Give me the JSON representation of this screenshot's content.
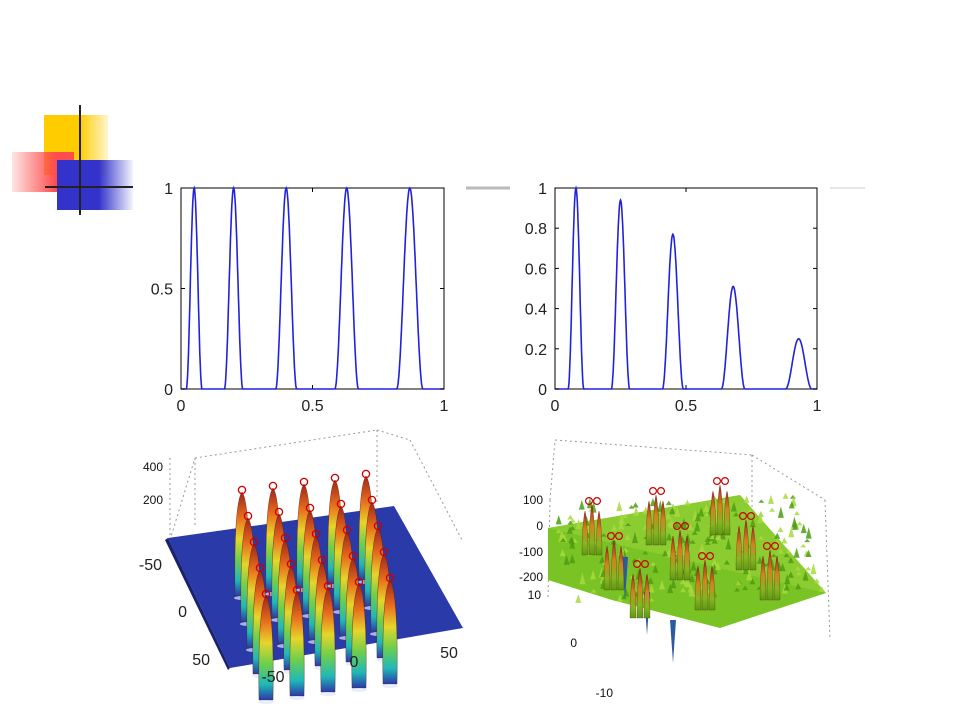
{
  "theme": {
    "accent_yellow": "#ffcc00",
    "accent_red": "#ff4d4d",
    "accent_blue": "#3333cc",
    "line_color": "#2222dd",
    "peak_marker_color": "#cc0000",
    "floor_blue": "#2a3aa8",
    "surface_green": "#6fbf1f"
  },
  "chart_data": [
    {
      "id": "top-left",
      "type": "line",
      "x_ticks": [
        "0",
        "0.5",
        "1"
      ],
      "y_ticks": [
        "0",
        "0.5",
        "1"
      ],
      "xlim": [
        0,
        1
      ],
      "ylim": [
        0,
        1
      ],
      "grid": false,
      "series": [
        {
          "shape": "sine-squared peaks of equal height",
          "peaks": [
            {
              "x": 0.05,
              "y": 1.0,
              "half_width": 0.03
            },
            {
              "x": 0.2,
              "y": 1.0,
              "half_width": 0.035
            },
            {
              "x": 0.4,
              "y": 1.0,
              "half_width": 0.04
            },
            {
              "x": 0.63,
              "y": 1.0,
              "half_width": 0.045
            },
            {
              "x": 0.87,
              "y": 1.0,
              "half_width": 0.05
            }
          ]
        }
      ]
    },
    {
      "id": "top-right",
      "type": "line",
      "x_ticks": [
        "0",
        "0.5",
        "1"
      ],
      "y_ticks": [
        "0",
        "0.2",
        "0.4",
        "0.6",
        "0.8",
        "1"
      ],
      "xlim": [
        0,
        1
      ],
      "ylim": [
        0,
        1
      ],
      "grid": false,
      "series": [
        {
          "shape": "peaks with decreasing height",
          "peaks": [
            {
              "x": 0.08,
              "y": 1.0,
              "half_width": 0.03
            },
            {
              "x": 0.25,
              "y": 0.94,
              "half_width": 0.035
            },
            {
              "x": 0.45,
              "y": 0.77,
              "half_width": 0.04
            },
            {
              "x": 0.68,
              "y": 0.51,
              "half_width": 0.045
            },
            {
              "x": 0.93,
              "y": 0.25,
              "half_width": 0.05
            }
          ]
        }
      ]
    },
    {
      "id": "bottom-left",
      "type": "surface3d",
      "z_ticks": [
        "400",
        "200"
      ],
      "y_ticks": [
        "-50",
        "0",
        "50"
      ],
      "x_ticks": [
        "-50",
        "0",
        "50"
      ],
      "description": "5x5 grid of equal peaks with red peak markers",
      "peak_grid": [
        5,
        5
      ]
    },
    {
      "id": "bottom-right",
      "type": "surface3d",
      "z_ticks": [
        "100",
        "0",
        "-100",
        "-200"
      ],
      "y_ticks": [
        "10",
        "0",
        "-10"
      ],
      "description": "multimodal rugged surface with red peak markers",
      "peak_count": 9
    }
  ]
}
